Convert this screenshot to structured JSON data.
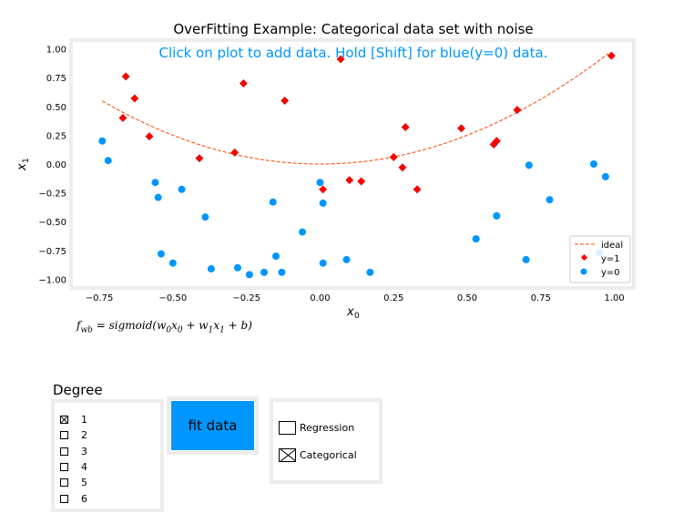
{
  "chart_data": {
    "type": "scatter",
    "title": "OverFitting Example: Categorical data set with noise",
    "instruction": "Click on plot to add data. Hold [Shift] for blue(y=0) data.",
    "xlabel": "x",
    "xlabel_sub": "0",
    "ylabel": "x",
    "ylabel_sub": "1",
    "xlim": [
      -0.84,
      1.06
    ],
    "ylim": [
      -1.06,
      1.06
    ],
    "xticks": [
      -0.75,
      -0.5,
      -0.25,
      0.0,
      0.25,
      0.5,
      0.75,
      1.0
    ],
    "xtick_labels": [
      "−0.75",
      "−0.50",
      "−0.25",
      "0.00",
      "0.25",
      "0.50",
      "0.75",
      "1.00"
    ],
    "yticks": [
      1.0,
      0.75,
      0.5,
      0.25,
      0.0,
      -0.25,
      -0.5,
      -0.75,
      -1.0
    ],
    "ytick_labels": [
      "1.00",
      "0.75",
      "0.50",
      "0.25",
      "0.00",
      "−0.25",
      "−0.50",
      "−0.75",
      "−1.00"
    ],
    "grid": false,
    "legend_position": "lower-right",
    "legend": [
      "ideal",
      "y=1",
      "y=0"
    ],
    "colors": {
      "ideal": "#ff4500",
      "y1": "#ff0000",
      "y0": "#0096ff",
      "instruction": "#0096ff"
    },
    "ideal": {
      "x_range": [
        -0.74,
        0.98
      ],
      "formula": "x1 = x0^2"
    },
    "series": [
      {
        "name": "y=1",
        "points": [
          [
            -0.66,
            0.76
          ],
          [
            -0.63,
            0.57
          ],
          [
            -0.67,
            0.4
          ],
          [
            -0.58,
            0.24
          ],
          [
            -0.41,
            0.05
          ],
          [
            -0.26,
            0.7
          ],
          [
            -0.12,
            0.55
          ],
          [
            -0.29,
            0.1
          ],
          [
            0.07,
            0.91
          ],
          [
            0.01,
            -0.22
          ],
          [
            0.1,
            -0.14
          ],
          [
            0.14,
            -0.15
          ],
          [
            0.25,
            0.06
          ],
          [
            0.29,
            0.32
          ],
          [
            0.28,
            -0.03
          ],
          [
            0.33,
            -0.22
          ],
          [
            0.48,
            0.31
          ],
          [
            0.59,
            0.17
          ],
          [
            0.6,
            0.2
          ],
          [
            0.67,
            0.47
          ],
          [
            0.99,
            0.94
          ]
        ]
      },
      {
        "name": "y=0",
        "points": [
          [
            -0.74,
            0.2
          ],
          [
            -0.72,
            0.03
          ],
          [
            -0.56,
            -0.16
          ],
          [
            -0.55,
            -0.29
          ],
          [
            -0.47,
            -0.22
          ],
          [
            -0.39,
            -0.46
          ],
          [
            -0.54,
            -0.78
          ],
          [
            -0.5,
            -0.86
          ],
          [
            -0.37,
            -0.91
          ],
          [
            -0.28,
            -0.9
          ],
          [
            -0.24,
            -0.96
          ],
          [
            -0.19,
            -0.94
          ],
          [
            -0.15,
            -0.8
          ],
          [
            -0.13,
            -0.94
          ],
          [
            -0.16,
            -0.33
          ],
          [
            -0.06,
            -0.59
          ],
          [
            0.0,
            -0.16
          ],
          [
            0.01,
            -0.34
          ],
          [
            0.01,
            -0.86
          ],
          [
            0.09,
            -0.83
          ],
          [
            0.17,
            -0.94
          ],
          [
            0.53,
            -0.65
          ],
          [
            0.6,
            -0.45
          ],
          [
            0.7,
            -0.83
          ],
          [
            0.71,
            -0.01
          ],
          [
            0.78,
            -0.31
          ],
          [
            0.93,
            0.0
          ],
          [
            0.97,
            -0.11
          ],
          [
            0.95,
            -0.77
          ]
        ]
      }
    ],
    "formula_text": "f_wb = sigmoid(w_0 x_0 + w_1 x_1 + b)"
  },
  "controls": {
    "degree_title": "Degree",
    "degree_options": [
      {
        "label": "1",
        "checked": true
      },
      {
        "label": "2",
        "checked": false
      },
      {
        "label": "3",
        "checked": false
      },
      {
        "label": "4",
        "checked": false
      },
      {
        "label": "5",
        "checked": false
      },
      {
        "label": "6",
        "checked": false
      }
    ],
    "fit_button_label": "fit data",
    "mode_options": [
      {
        "label": "Regression",
        "checked": false
      },
      {
        "label": "Categorical",
        "checked": true
      }
    ]
  }
}
